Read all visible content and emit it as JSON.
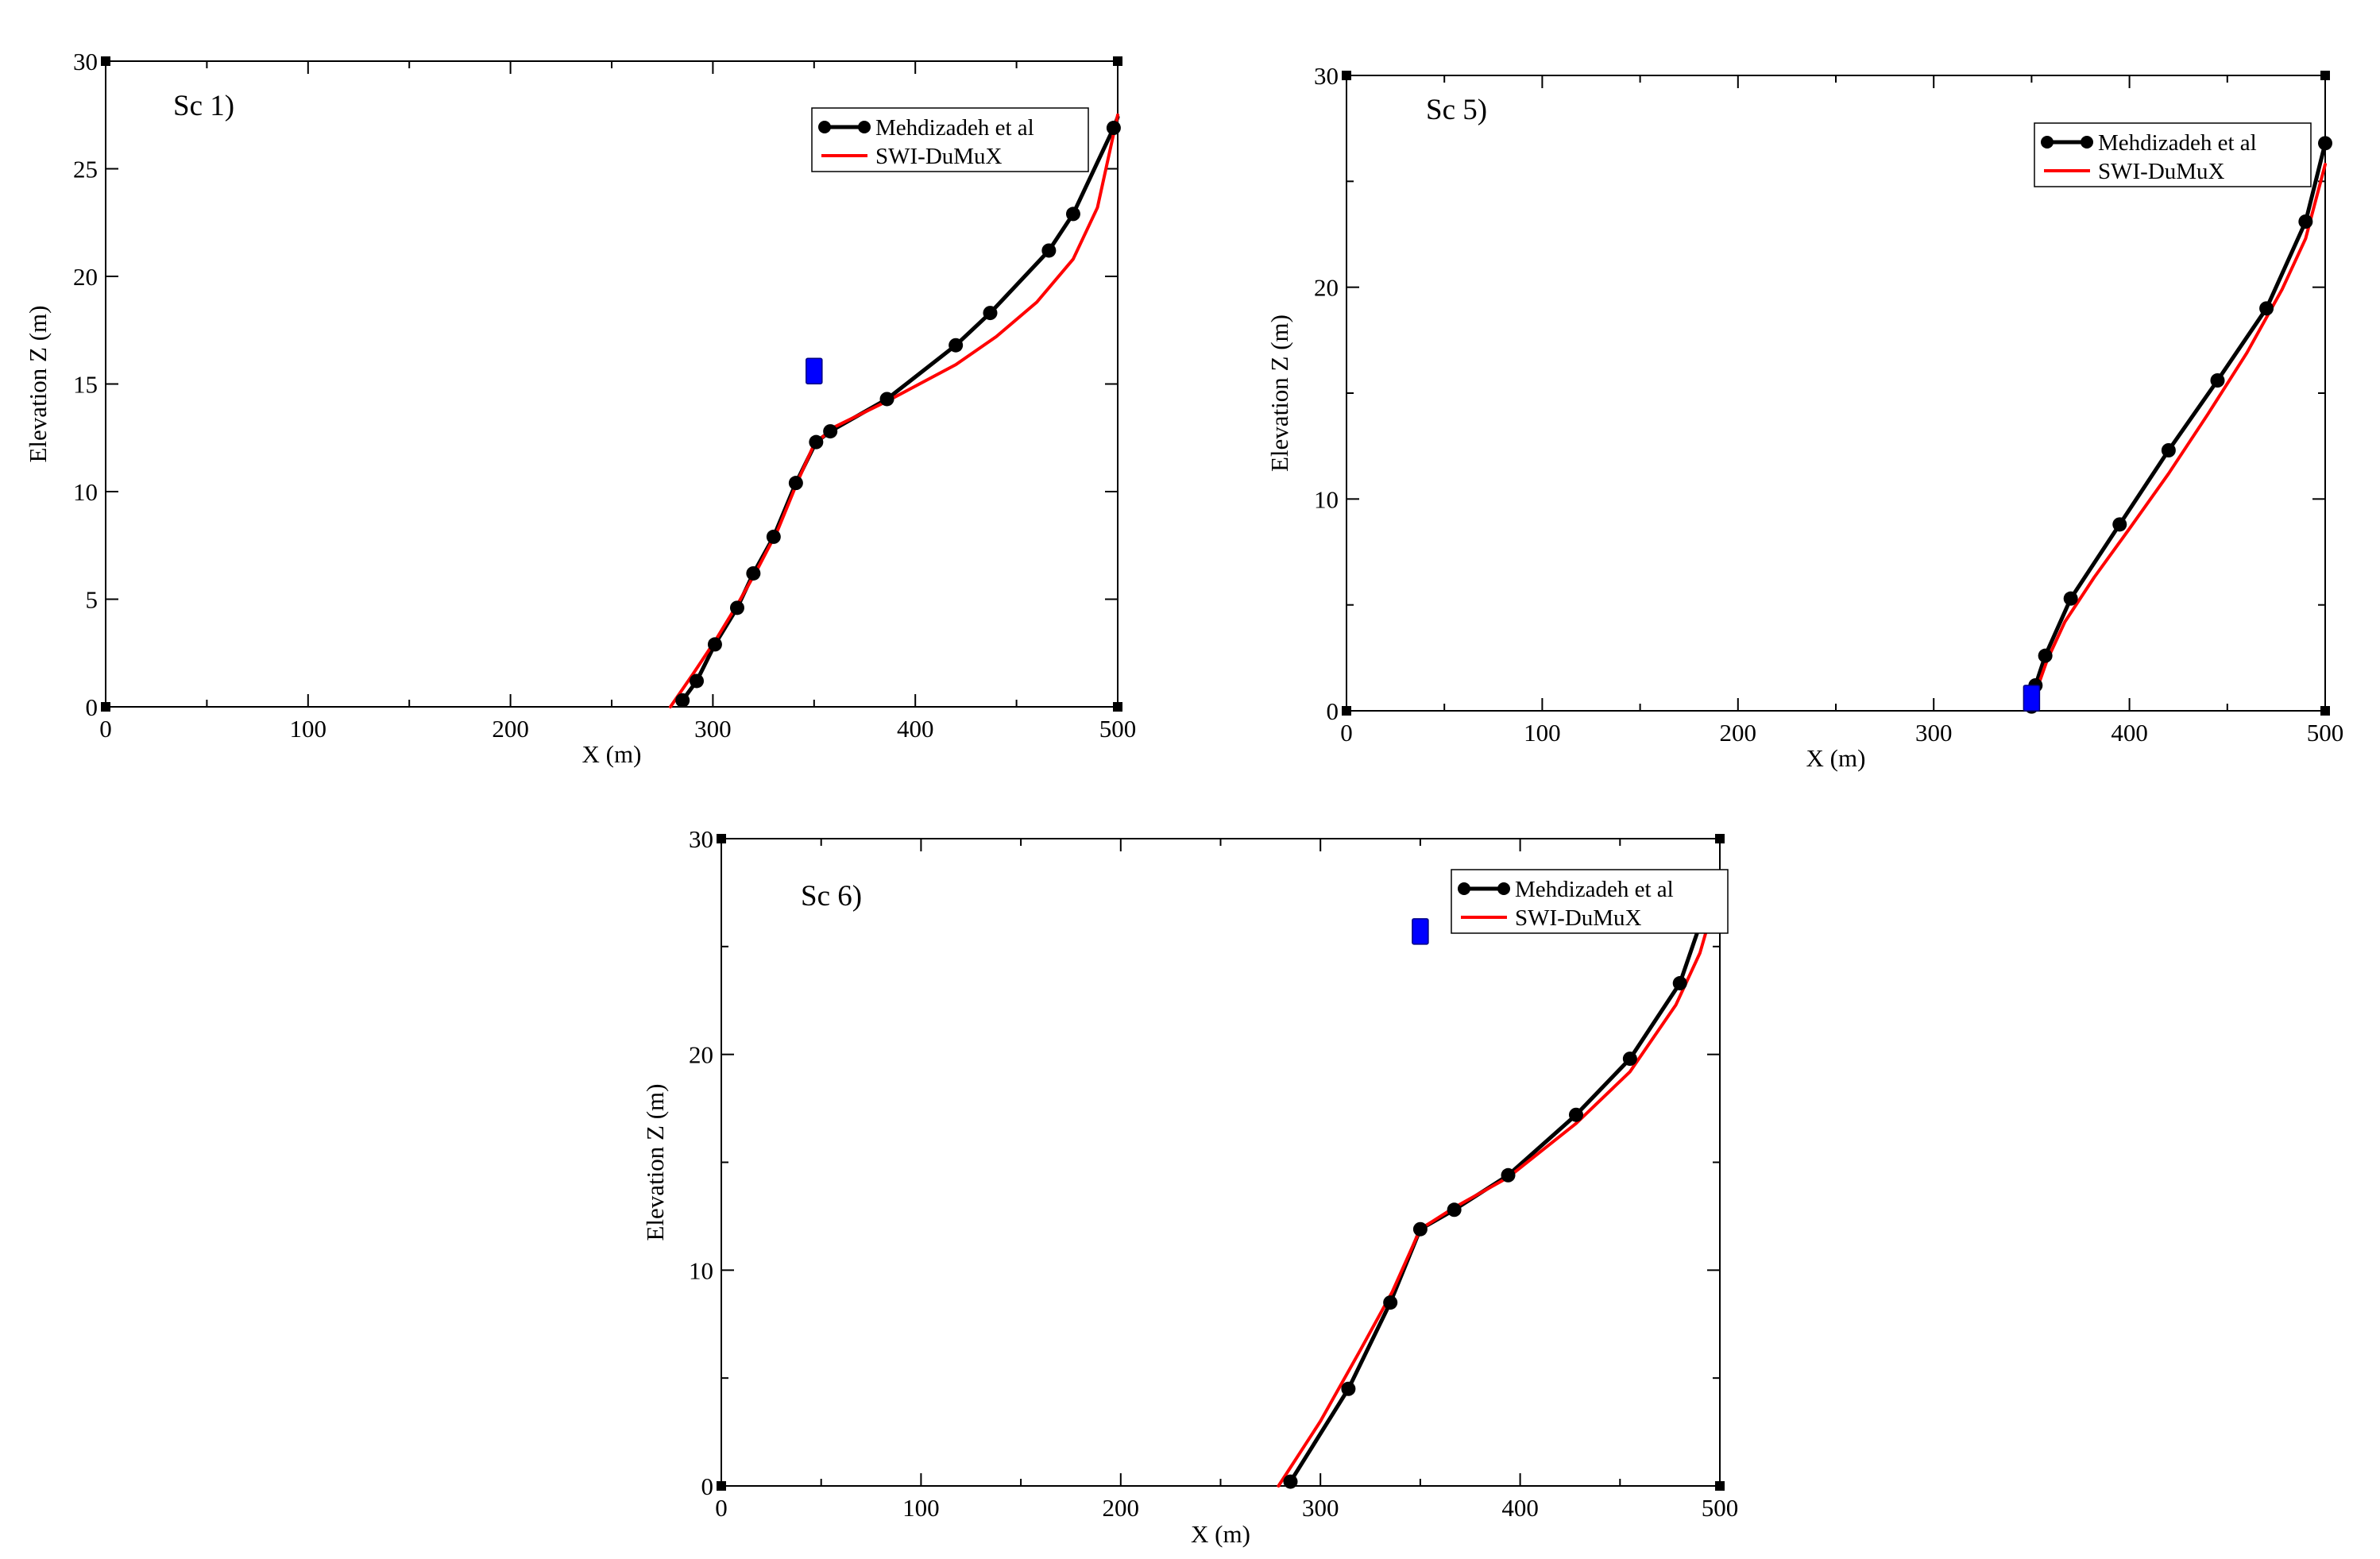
{
  "colors": {
    "reference_line": "#000000",
    "model_line": "#ff0000",
    "well_marker": "#0000ff",
    "axes": "#000000",
    "background": "#ffffff"
  },
  "chart_data": [
    {
      "type": "line",
      "panel_label": "Sc 1)",
      "xlabel": "X (m)",
      "ylabel": "Elevation  Z (m)",
      "xlim": [
        0,
        500
      ],
      "ylim": [
        0,
        30
      ],
      "xticks": [
        0,
        100,
        200,
        300,
        400,
        500
      ],
      "yticks": [
        0,
        5,
        10,
        15,
        20,
        25,
        30
      ],
      "grid": false,
      "legend_position": "top-right",
      "series": [
        {
          "name": "Mehdizadeh et al",
          "color": "#000000",
          "markers": true,
          "points": [
            [
              285,
              0.3
            ],
            [
              292,
              1.2
            ],
            [
              301,
              2.9
            ],
            [
              312,
              4.6
            ],
            [
              320,
              6.2
            ],
            [
              330,
              7.9
            ],
            [
              341,
              10.4
            ],
            [
              351,
              12.3
            ],
            [
              358,
              12.8
            ],
            [
              386,
              14.3
            ],
            [
              420,
              16.8
            ],
            [
              437,
              18.3
            ],
            [
              466,
              21.2
            ],
            [
              478,
              22.9
            ],
            [
              498,
              26.9
            ],
            [
              500,
              27.4
            ]
          ]
        },
        {
          "name": "SWI-DuMuX",
          "color": "#ff0000",
          "markers": false,
          "points": [
            [
              279,
              0
            ],
            [
              290,
              1.5
            ],
            [
              302,
              3.2
            ],
            [
              313,
              4.9
            ],
            [
              322,
              6.4
            ],
            [
              332,
              8.2
            ],
            [
              342,
              10.5
            ],
            [
              350,
              12.2
            ],
            [
              360,
              13.0
            ],
            [
              386,
              14.2
            ],
            [
              420,
              15.9
            ],
            [
              440,
              17.2
            ],
            [
              460,
              18.8
            ],
            [
              478,
              20.8
            ],
            [
              490,
              23.2
            ],
            [
              500,
              27.5
            ]
          ]
        }
      ],
      "well_marker": {
        "x": 350,
        "y": 15.6
      }
    },
    {
      "type": "line",
      "panel_label": "Sc 5)",
      "xlabel": "X (m)",
      "ylabel": "Elevation  Z (m)",
      "xlim": [
        0,
        500
      ],
      "ylim": [
        0,
        30
      ],
      "xticks": [
        0,
        100,
        200,
        300,
        400,
        500
      ],
      "yticks": [
        0,
        10,
        20,
        30
      ],
      "grid": false,
      "legend_position": "top-right",
      "series": [
        {
          "name": "Mehdizadeh et al",
          "color": "#000000",
          "markers": true,
          "points": [
            [
              350,
              0.2
            ],
            [
              352,
              1.2
            ],
            [
              357,
              2.6
            ],
            [
              370,
              5.3
            ],
            [
              395,
              8.8
            ],
            [
              420,
              12.3
            ],
            [
              445,
              15.6
            ],
            [
              470,
              19.0
            ],
            [
              490,
              23.1
            ],
            [
              500,
              26.8
            ]
          ]
        },
        {
          "name": "SWI-DuMuX",
          "color": "#ff0000",
          "markers": false,
          "points": [
            [
              350,
              0.2
            ],
            [
              353,
              1.1
            ],
            [
              358,
              2.4
            ],
            [
              367,
              4.2
            ],
            [
              382,
              6.3
            ],
            [
              400,
              8.6
            ],
            [
              420,
              11.2
            ],
            [
              440,
              14.0
            ],
            [
              460,
              16.9
            ],
            [
              478,
              19.9
            ],
            [
              490,
              22.3
            ],
            [
              500,
              25.8
            ]
          ]
        }
      ],
      "well_marker": {
        "x": 350,
        "y": 0.6
      }
    },
    {
      "type": "line",
      "panel_label": "Sc 6)",
      "xlabel": "X (m)",
      "ylabel": "Elevation Z (m)",
      "xlim": [
        0,
        500
      ],
      "ylim": [
        0,
        30
      ],
      "xticks": [
        0,
        100,
        200,
        300,
        400,
        500
      ],
      "yticks": [
        0,
        10,
        20,
        30
      ],
      "grid": false,
      "legend_position": "top-right",
      "series": [
        {
          "name": "Mehdizadeh et al",
          "color": "#000000",
          "markers": true,
          "points": [
            [
              285,
              0.2
            ],
            [
              314,
              4.5
            ],
            [
              335,
              8.5
            ],
            [
              350,
              11.9
            ],
            [
              367,
              12.8
            ],
            [
              394,
              14.4
            ],
            [
              428,
              17.2
            ],
            [
              455,
              19.8
            ],
            [
              480,
              23.3
            ],
            [
              497,
              27.9
            ],
            [
              500,
              27.9
            ]
          ]
        },
        {
          "name": "SWI-DuMuX",
          "color": "#ff0000",
          "markers": false,
          "points": [
            [
              279,
              0
            ],
            [
              300,
              3.0
            ],
            [
              320,
              6.3
            ],
            [
              336,
              9.0
            ],
            [
              350,
              11.9
            ],
            [
              367,
              12.9
            ],
            [
              394,
              14.3
            ],
            [
              428,
              16.8
            ],
            [
              455,
              19.2
            ],
            [
              478,
              22.3
            ],
            [
              490,
              24.7
            ],
            [
              500,
              27.9
            ]
          ]
        }
      ],
      "well_marker": {
        "x": 350,
        "y": 25.7
      }
    }
  ]
}
